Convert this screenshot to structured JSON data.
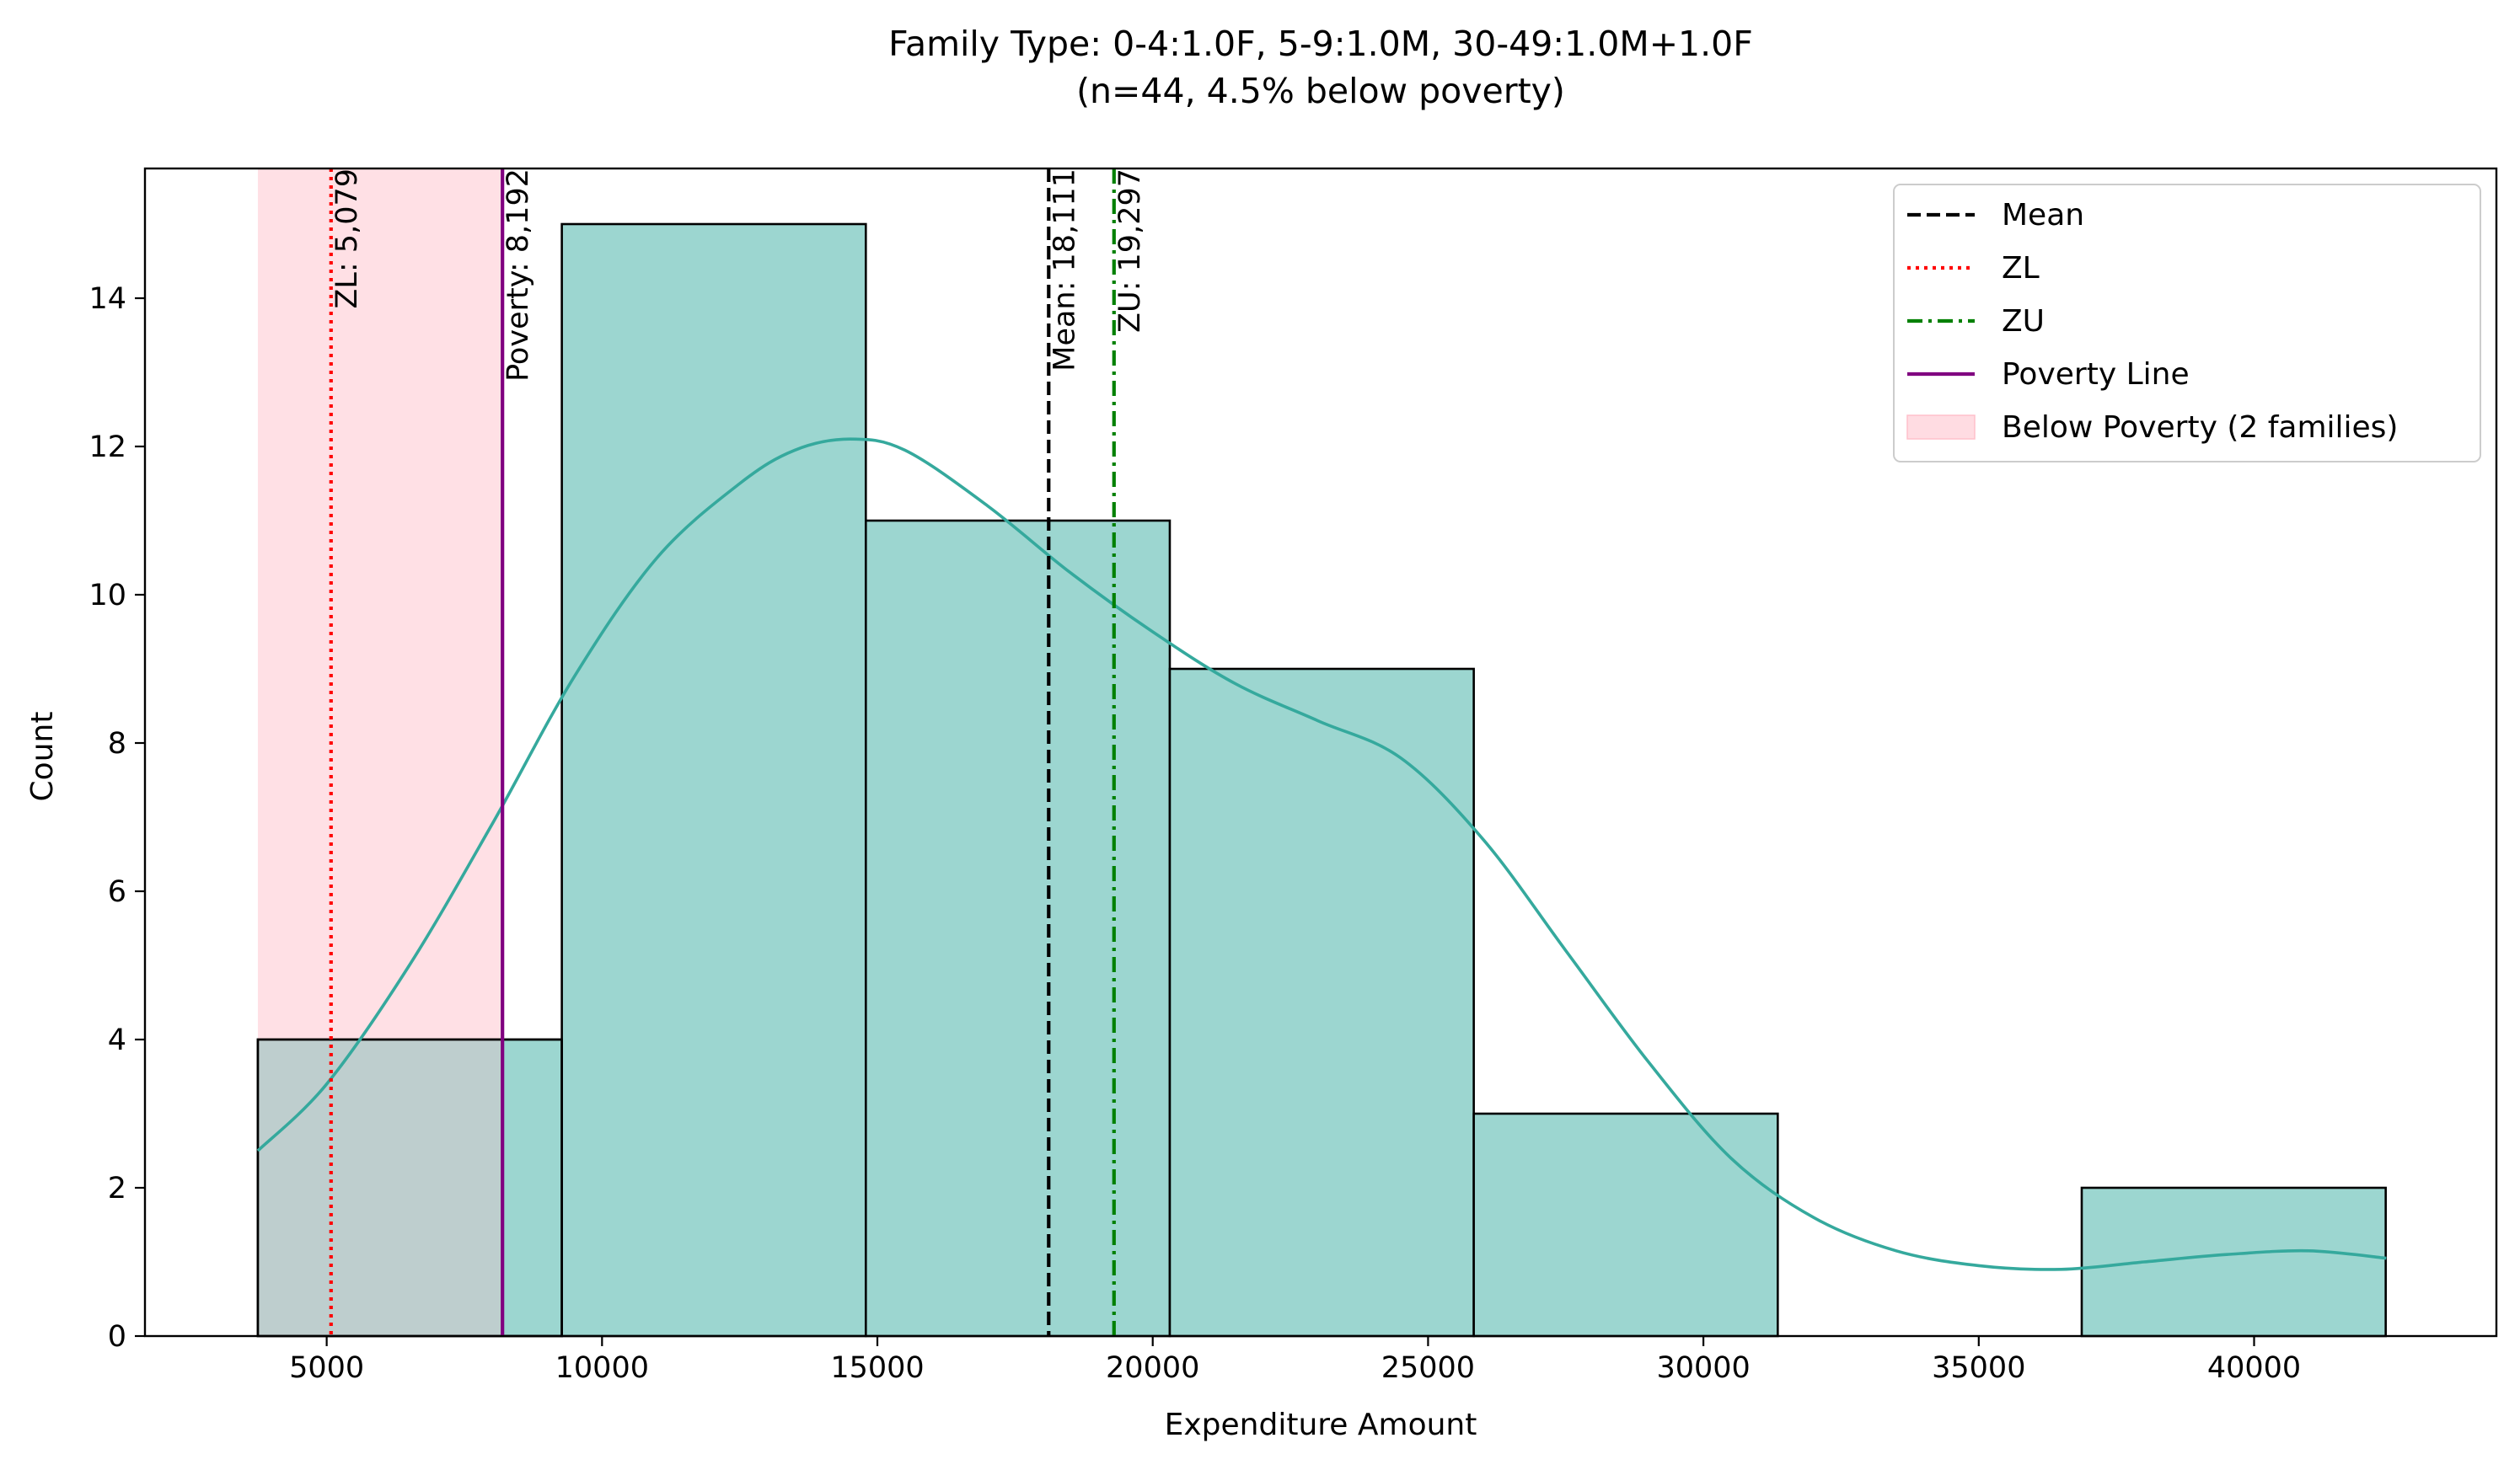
{
  "chart_data": {
    "type": "bar",
    "title_line1": "Family Type: 0-4:1.0F, 5-9:1.0M, 30-49:1.0M+1.0F",
    "title_line2": "(n=44, 4.5% below poverty)",
    "xlabel": "Expenditure Amount",
    "ylabel": "Count",
    "xlim": [
      1700,
      44400
    ],
    "ylim": [
      0,
      15.75
    ],
    "x_ticks": [
      5000,
      10000,
      15000,
      20000,
      25000,
      30000,
      35000,
      40000
    ],
    "x_tick_labels": [
      "5000",
      "10000",
      "15000",
      "20000",
      "25000",
      "30000",
      "35000",
      "40000"
    ],
    "y_ticks": [
      0,
      2,
      4,
      6,
      8,
      10,
      12,
      14
    ],
    "y_tick_labels": [
      "0",
      "2",
      "4",
      "6",
      "8",
      "10",
      "12",
      "14"
    ],
    "bins": [
      {
        "x0": 3750,
        "x1": 9270,
        "count": 4
      },
      {
        "x0": 9270,
        "x1": 14790,
        "count": 15
      },
      {
        "x0": 14790,
        "x1": 20310,
        "count": 11
      },
      {
        "x0": 20310,
        "x1": 25830,
        "count": 9
      },
      {
        "x0": 25830,
        "x1": 31350,
        "count": 3
      },
      {
        "x0": 31350,
        "x1": 36870,
        "count": 0
      },
      {
        "x0": 36870,
        "x1": 42390,
        "count": 2
      }
    ],
    "kde": {
      "x": [
        3750,
        5000,
        6500,
        8000,
        9500,
        11000,
        12500,
        13500,
        14500,
        15500,
        17000,
        18500,
        20000,
        21500,
        23000,
        24500,
        26000,
        27500,
        29000,
        30500,
        32000,
        33500,
        35000,
        36500,
        38000,
        39500,
        41000,
        42400
      ],
      "y": [
        2.5,
        3.4,
        5.0,
        6.9,
        8.9,
        10.5,
        11.5,
        11.95,
        12.1,
        11.95,
        11.2,
        10.3,
        9.5,
        8.8,
        8.3,
        7.8,
        6.7,
        5.2,
        3.7,
        2.4,
        1.6,
        1.15,
        0.95,
        0.9,
        1.0,
        1.1,
        1.15,
        1.05
      ]
    },
    "below_poverty_span": [
      3750,
      8192
    ],
    "lines": [
      {
        "key": "mean",
        "value": 18111,
        "label": "Mean: 18,111",
        "color": "#000000",
        "style": "dashed"
      },
      {
        "key": "zl",
        "value": 5079,
        "label": "ZL: 5,079",
        "color": "#ff0000",
        "style": "dotted"
      },
      {
        "key": "zu",
        "value": 19297,
        "label": "ZU: 19,297",
        "color": "#008000",
        "style": "dashdot"
      },
      {
        "key": "poverty",
        "value": 8192,
        "label": "Poverty: 8,192",
        "color": "#800080",
        "style": "solid"
      }
    ],
    "legend": {
      "placement": "top-right",
      "entries": [
        {
          "label": "Mean",
          "color": "#000000",
          "style": "dashed"
        },
        {
          "label": "ZL",
          "color": "#ff0000",
          "style": "dotted"
        },
        {
          "label": "ZU",
          "color": "#008000",
          "style": "dashdot"
        },
        {
          "label": "Poverty Line",
          "color": "#800080",
          "style": "solid"
        },
        {
          "label": "Below Poverty (2 families)",
          "color": "#ffc0cb",
          "style": "patch"
        }
      ]
    },
    "colors": {
      "bar_fill": "#9ad5cf",
      "bar_edge": "#000000",
      "kde": "#35a99d",
      "below_poverty": "#ffe0e5"
    },
    "grid": false
  }
}
